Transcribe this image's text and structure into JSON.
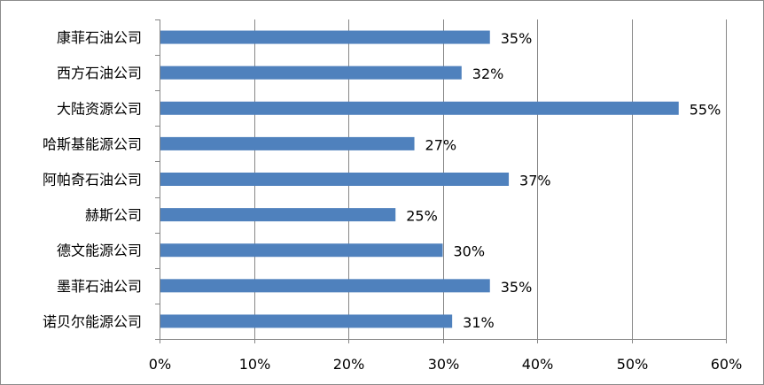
{
  "chart_data": {
    "type": "bar",
    "orientation": "horizontal",
    "categories": [
      "康菲石油公司",
      "西方石油公司",
      "大陆资源公司",
      "哈斯基能源公司",
      "阿帕奇石油公司",
      "赫斯公司",
      "德文能源公司",
      "墨菲石油公司",
      "诺贝尔能源公司"
    ],
    "values": [
      35,
      32,
      55,
      27,
      37,
      25,
      30,
      35,
      31
    ],
    "value_labels": [
      "35%",
      "32%",
      "55%",
      "27%",
      "37%",
      "25%",
      "30%",
      "35%",
      "31%"
    ],
    "x_ticks": [
      "0%",
      "10%",
      "20%",
      "30%",
      "40%",
      "50%",
      "60%"
    ],
    "xlim": [
      0,
      60
    ],
    "grid": "vertical",
    "bar_color": "#4f81bd",
    "grid_color": "#868686"
  }
}
